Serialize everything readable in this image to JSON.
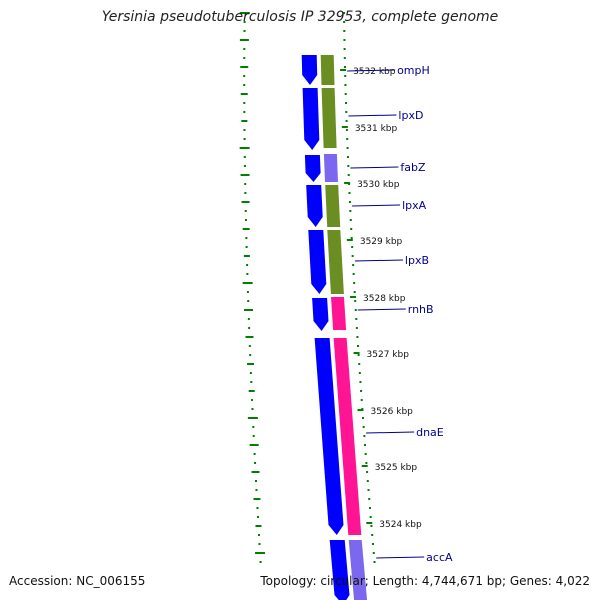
{
  "title": "Yersinia pseudotuberculosis IP 32953, complete genome",
  "accession": "Accession: NC_006155",
  "topology": "Topology: circular; Length: 4,744,671 bp; Genes: 4,022",
  "colors": {
    "strand_forward": "#0000ff",
    "cog_olive": "#6b8e23",
    "cog_lavender": "#7b68ee",
    "cog_pink": "#ff1493",
    "backbone": "#808080",
    "ticks": "#008000",
    "gene_label": "#00008b"
  },
  "scale_labels": [
    "3532 kbp",
    "3531 kbp",
    "3530 kbp",
    "3529 kbp",
    "3528 kbp",
    "3527 kbp",
    "3526 kbp",
    "3525 kbp",
    "3524 kbp"
  ],
  "genes": [
    {
      "name": "ompH",
      "cog": "olive"
    },
    {
      "name": "lpxD",
      "cog": "olive"
    },
    {
      "name": "fabZ",
      "cog": "lavender"
    },
    {
      "name": "lpxA",
      "cog": "olive"
    },
    {
      "name": "lpxB",
      "cog": "olive"
    },
    {
      "name": "rnhB",
      "cog": "pink"
    },
    {
      "name": "dnaE",
      "cog": "pink"
    },
    {
      "name": "accA",
      "cog": "lavender"
    }
  ]
}
